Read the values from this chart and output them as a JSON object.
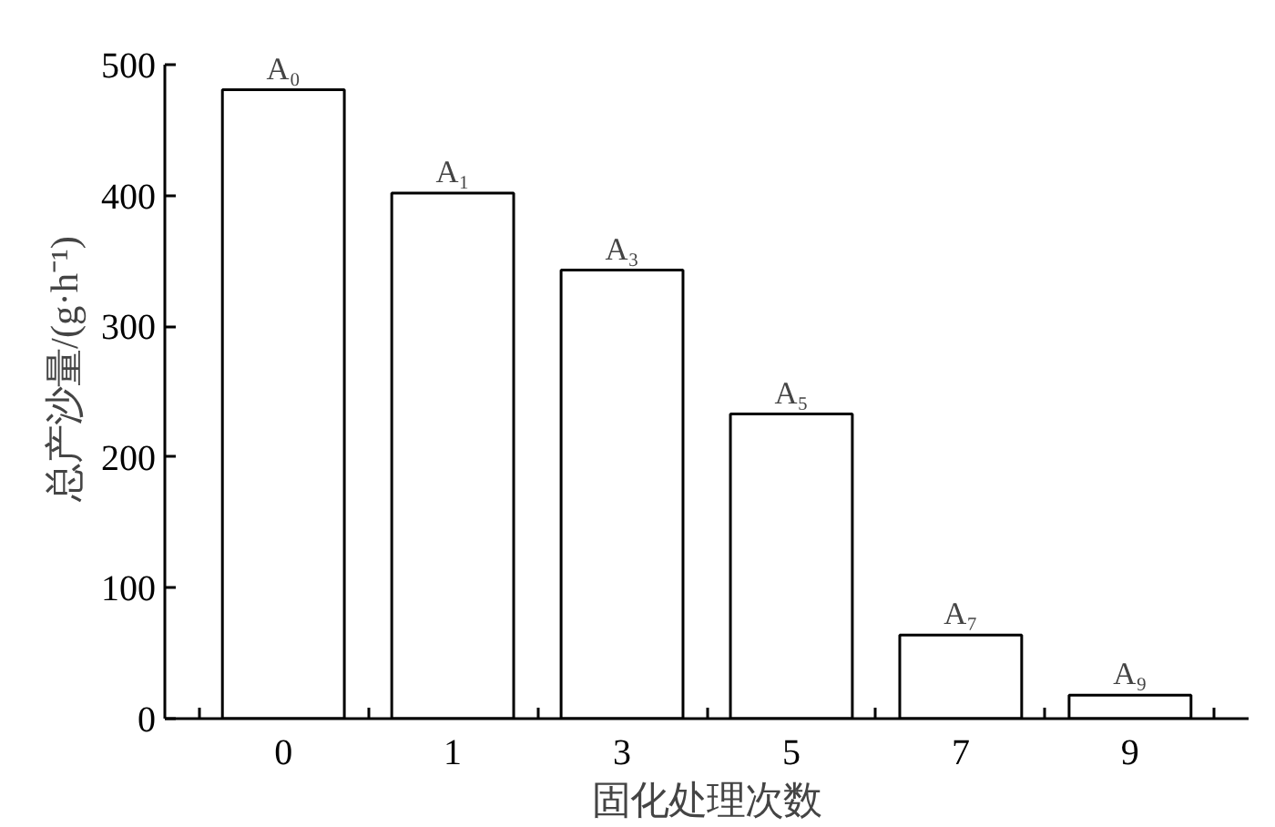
{
  "chart_data": {
    "type": "bar",
    "xlabel": "固化处理次数",
    "ylabel": "总产沙量/(g·h⁻¹)",
    "categories": [
      "0",
      "1",
      "3",
      "5",
      "7",
      "9"
    ],
    "values": [
      481,
      402,
      343,
      233,
      64,
      18
    ],
    "color": "#ffffff",
    "ylim": [
      0,
      500
    ],
    "yticks": [
      0,
      100,
      200,
      300,
      400,
      500
    ],
    "grid": false,
    "annotations": [
      {
        "text": "A₀",
        "x": "0",
        "y": 481
      },
      {
        "text": "A₁",
        "x": "1",
        "y": 402
      },
      {
        "text": "A₃",
        "x": "3",
        "y": 343
      },
      {
        "text": "A₅",
        "x": "5",
        "y": 233
      },
      {
        "text": "A₇",
        "x": "7",
        "y": 64
      },
      {
        "text": "A₉",
        "x": "9",
        "y": 18
      }
    ]
  }
}
